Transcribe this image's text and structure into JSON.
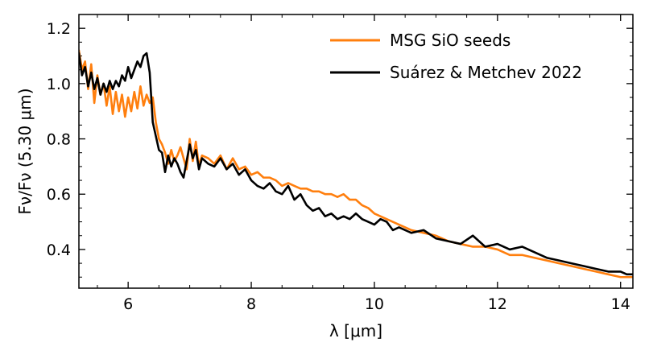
{
  "chart_data": {
    "type": "line",
    "title": "",
    "xlabel": "λ [μm]",
    "ylabel": "Fν/Fν (5.30 μm)",
    "xlim": [
      5.2,
      14.2
    ],
    "ylim": [
      0.26,
      1.25
    ],
    "xticks": [
      6,
      8,
      10,
      12,
      14
    ],
    "xtick_labels": [
      "6",
      "8",
      "10",
      "12",
      "14"
    ],
    "yticks": [
      0.4,
      0.6,
      0.8,
      1.0,
      1.2
    ],
    "ytick_labels": [
      "0.4",
      "0.6",
      "0.8",
      "1.0",
      "1.2"
    ],
    "x_minor_step": 0.5,
    "y_minor_step": 0.05,
    "grid": false,
    "legend_position": "top-right",
    "series": [
      {
        "name": "MSG SiO seeds",
        "color": "#ff7f0e",
        "x": [
          5.2,
          5.25,
          5.3,
          5.35,
          5.4,
          5.45,
          5.5,
          5.55,
          5.6,
          5.65,
          5.7,
          5.75,
          5.8,
          5.85,
          5.9,
          5.95,
          6.0,
          6.05,
          6.1,
          6.15,
          6.2,
          6.25,
          6.3,
          6.35,
          6.4,
          6.45,
          6.5,
          6.55,
          6.6,
          6.65,
          6.7,
          6.75,
          6.8,
          6.85,
          6.9,
          6.95,
          7.0,
          7.05,
          7.1,
          7.15,
          7.2,
          7.3,
          7.4,
          7.5,
          7.6,
          7.7,
          7.8,
          7.9,
          8.0,
          8.1,
          8.2,
          8.3,
          8.4,
          8.5,
          8.6,
          8.7,
          8.8,
          8.9,
          9.0,
          9.1,
          9.2,
          9.3,
          9.4,
          9.5,
          9.6,
          9.7,
          9.8,
          9.9,
          10.0,
          10.2,
          10.4,
          10.6,
          10.8,
          11.0,
          11.2,
          11.4,
          11.6,
          11.8,
          12.0,
          12.2,
          12.4,
          12.6,
          12.8,
          13.0,
          13.2,
          13.4,
          13.6,
          13.8,
          14.0,
          14.2
        ],
        "y": [
          1.12,
          1.05,
          1.08,
          0.98,
          1.07,
          0.93,
          1.03,
          0.96,
          1.0,
          0.92,
          0.99,
          0.89,
          0.97,
          0.9,
          0.96,
          0.88,
          0.95,
          0.9,
          0.97,
          0.91,
          0.99,
          0.92,
          0.96,
          0.93,
          0.95,
          0.86,
          0.8,
          0.78,
          0.75,
          0.71,
          0.76,
          0.72,
          0.74,
          0.77,
          0.73,
          0.69,
          0.8,
          0.72,
          0.79,
          0.7,
          0.74,
          0.73,
          0.71,
          0.74,
          0.69,
          0.73,
          0.69,
          0.7,
          0.67,
          0.68,
          0.66,
          0.66,
          0.65,
          0.63,
          0.64,
          0.63,
          0.62,
          0.62,
          0.61,
          0.61,
          0.6,
          0.6,
          0.59,
          0.6,
          0.58,
          0.58,
          0.56,
          0.55,
          0.53,
          0.51,
          0.49,
          0.47,
          0.46,
          0.45,
          0.43,
          0.42,
          0.41,
          0.41,
          0.4,
          0.38,
          0.38,
          0.37,
          0.36,
          0.35,
          0.34,
          0.33,
          0.32,
          0.31,
          0.3,
          0.3
        ]
      },
      {
        "name": "Suárez & Metchev 2022",
        "color": "#000000",
        "x": [
          5.2,
          5.25,
          5.3,
          5.35,
          5.4,
          5.45,
          5.5,
          5.55,
          5.6,
          5.65,
          5.7,
          5.75,
          5.8,
          5.85,
          5.9,
          5.95,
          6.0,
          6.05,
          6.1,
          6.15,
          6.2,
          6.25,
          6.3,
          6.35,
          6.4,
          6.45,
          6.5,
          6.55,
          6.6,
          6.65,
          6.7,
          6.75,
          6.8,
          6.85,
          6.9,
          6.95,
          7.0,
          7.05,
          7.1,
          7.15,
          7.2,
          7.3,
          7.4,
          7.5,
          7.6,
          7.7,
          7.8,
          7.9,
          8.0,
          8.1,
          8.2,
          8.3,
          8.4,
          8.5,
          8.6,
          8.7,
          8.8,
          8.9,
          9.0,
          9.1,
          9.2,
          9.3,
          9.4,
          9.5,
          9.6,
          9.7,
          9.8,
          9.9,
          10.0,
          10.1,
          10.2,
          10.3,
          10.4,
          10.6,
          10.8,
          11.0,
          11.2,
          11.4,
          11.6,
          11.8,
          12.0,
          12.2,
          12.4,
          12.6,
          12.8,
          13.0,
          13.2,
          13.4,
          13.6,
          13.8,
          14.0,
          14.1,
          14.2
        ],
        "y": [
          1.11,
          1.03,
          1.06,
          0.99,
          1.04,
          0.98,
          1.02,
          0.96,
          1.0,
          0.97,
          1.01,
          0.98,
          1.01,
          0.99,
          1.03,
          1.01,
          1.06,
          1.02,
          1.05,
          1.08,
          1.06,
          1.1,
          1.11,
          1.04,
          0.86,
          0.81,
          0.76,
          0.75,
          0.68,
          0.74,
          0.7,
          0.73,
          0.71,
          0.68,
          0.66,
          0.72,
          0.78,
          0.73,
          0.76,
          0.69,
          0.73,
          0.71,
          0.7,
          0.73,
          0.69,
          0.71,
          0.67,
          0.69,
          0.65,
          0.63,
          0.62,
          0.64,
          0.61,
          0.6,
          0.63,
          0.58,
          0.6,
          0.56,
          0.54,
          0.55,
          0.52,
          0.53,
          0.51,
          0.52,
          0.51,
          0.53,
          0.51,
          0.5,
          0.49,
          0.51,
          0.5,
          0.47,
          0.48,
          0.46,
          0.47,
          0.44,
          0.43,
          0.42,
          0.45,
          0.41,
          0.42,
          0.4,
          0.41,
          0.39,
          0.37,
          0.36,
          0.35,
          0.34,
          0.33,
          0.32,
          0.32,
          0.31,
          0.31
        ]
      }
    ]
  }
}
